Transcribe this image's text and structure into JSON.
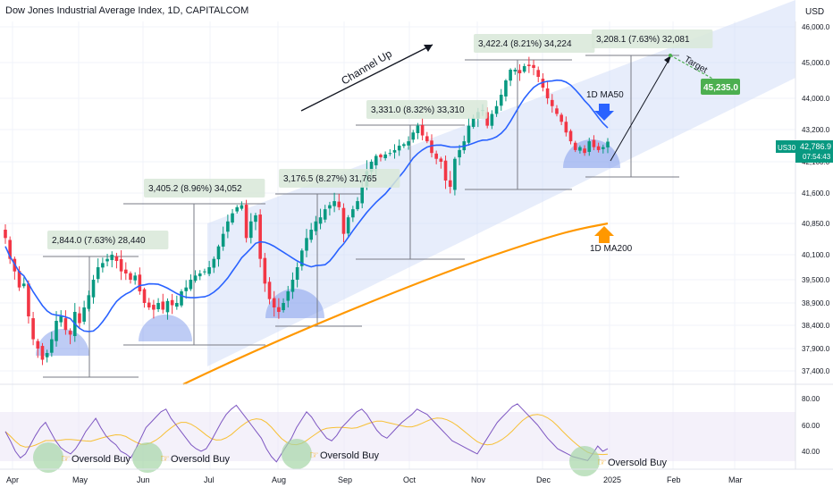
{
  "header": {
    "title": "Dow Jones Industrial Average Index, 1D, CAPITALCOM",
    "currency": "USD"
  },
  "colors": {
    "up": "#089981",
    "down": "#f23645",
    "ma50": "#2962ff",
    "ma200": "#ff9800",
    "channel": "#c9d6f7",
    "rsi": "#7e57c2",
    "rsi_ma": "#f7c035",
    "target_badge": "#4caf50",
    "circle": "#a5d6a7"
  },
  "chart_data": {
    "type": "candlestick",
    "series_name": "US30",
    "x_ticks": [
      "Apr",
      "May",
      "Jun",
      "Jul",
      "Aug",
      "Sep",
      "Oct",
      "Nov",
      "Dec",
      "2025",
      "Feb",
      "Mar"
    ],
    "y_ticks": [
      "46,000.0",
      "45,000.0",
      "44,000.0",
      "43,200.0",
      "42,786.9",
      "42,100.0",
      "41,600.0",
      "40,850.0",
      "40,100.0",
      "39,500.0",
      "38,900.0",
      "38,400.0",
      "37,900.0",
      "37,400.0"
    ],
    "last_price": "42,786.9",
    "countdown": "07:54:43",
    "annotations": [
      {
        "text": "2,844.0 (7.63%) 28,440"
      },
      {
        "text": "3,405.2 (8.96%) 34,052"
      },
      {
        "text": "3,176.5 (8.27%) 31,765"
      },
      {
        "text": "3,331.0 (8.32%) 33,310"
      },
      {
        "text": "3,422.4 (8.21%) 34,224"
      },
      {
        "text": "3,208.1 (7.63%) 32,081"
      }
    ],
    "labels": {
      "channel": "Channel Up",
      "ma50": "1D MA50",
      "ma200": "1D MA200",
      "target": "Target",
      "target_value": "45,235.0"
    },
    "rsi": {
      "y_ticks": [
        "80.00",
        "60.00",
        "40.00"
      ],
      "signals": [
        "Oversold Buy",
        "Oversold Buy",
        "Oversold Buy",
        "Oversold Buy"
      ]
    },
    "closes": [
      40500,
      40000,
      39700,
      39300,
      39400,
      38600,
      38100,
      37900,
      37650,
      37800,
      38100,
      38500,
      38600,
      38300,
      38200,
      38700,
      38450,
      38800,
      39100,
      39500,
      39800,
      39900,
      40000,
      40100,
      39950,
      39700,
      39650,
      39500,
      39600,
      39200,
      38900,
      38800,
      38750,
      38900,
      38750,
      38950,
      38850,
      38900,
      39200,
      39300,
      39500,
      39600,
      39650,
      39700,
      39800,
      40000,
      40300,
      40600,
      40900,
      41100,
      41250,
      41300,
      40500,
      40900,
      41050,
      40000,
      39400,
      39000,
      38800,
      38700,
      38900,
      39200,
      39500,
      39800,
      40200,
      40500,
      40700,
      40900,
      41000,
      41200,
      41300,
      41400,
      41250,
      40600,
      41000,
      41200,
      41400,
      41700,
      41950,
      42100,
      42300,
      42250,
      42350,
      42400,
      42500,
      42650,
      42700,
      42800,
      43100,
      43300,
      43000,
      42800,
      42400,
      42200,
      42100,
      41800,
      41700,
      42200,
      42500,
      42800,
      43300,
      43500,
      43650,
      43700,
      43300,
      43600,
      43800,
      44100,
      44500,
      44800,
      44800,
      44700,
      44900,
      44900,
      44850,
      44600,
      44300,
      44000,
      43800,
      43600,
      43400,
      43100,
      42800,
      42500,
      42600,
      42400,
      42800,
      42600,
      42500,
      42600,
      42786.9
    ]
  }
}
